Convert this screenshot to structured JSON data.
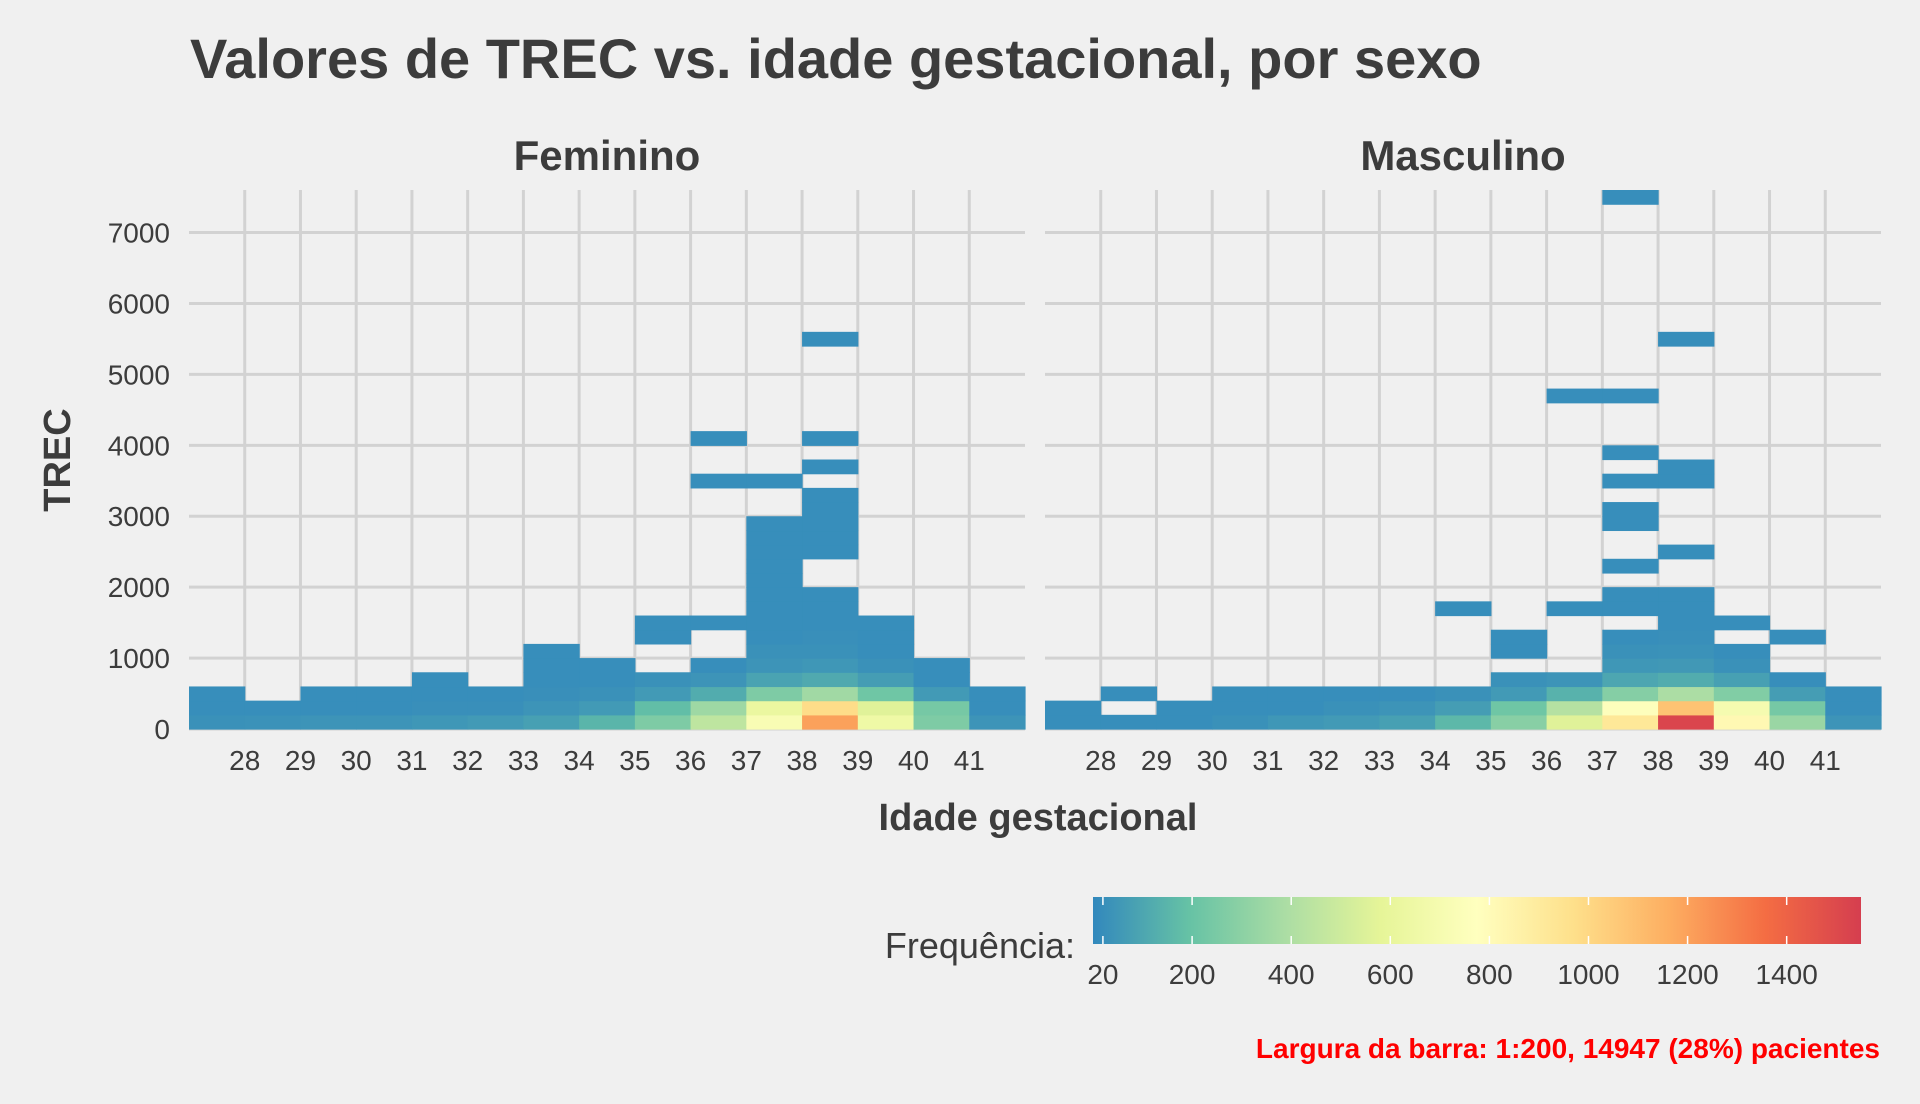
{
  "chart_data": {
    "type": "heatmap",
    "title": "Valores de TREC vs. idade gestacional, por sexo",
    "xlabel": "Idade gestacional",
    "ylabel": "TREC",
    "x_ticks": [
      28,
      29,
      30,
      31,
      32,
      33,
      34,
      35,
      36,
      37,
      38,
      39,
      40,
      41
    ],
    "y_ticks": [
      0,
      1000,
      2000,
      3000,
      4000,
      5000,
      6000,
      7000
    ],
    "xlim": [
      27,
      42
    ],
    "ylim": [
      0,
      7600
    ],
    "bin_height": 200,
    "grid": true,
    "legend": {
      "title": "Frequência:",
      "position": "bottom",
      "ticks": [
        20,
        200,
        400,
        600,
        800,
        1000,
        1200,
        1400
      ],
      "range": [
        0,
        1550
      ],
      "colors": [
        "#3288bd",
        "#66c2a5",
        "#abdda4",
        "#e6f598",
        "#ffffbf",
        "#fee08b",
        "#fdae61",
        "#f46d43",
        "#d53e4f"
      ]
    },
    "caption": "Largura da barra: 1:200, 14947 (28%) pacientes",
    "caption_color": "#ff0000",
    "panels": [
      {
        "name": "Feminino",
        "tiles": [
          [
            27,
            0,
            30
          ],
          [
            27,
            200,
            20
          ],
          [
            27,
            400,
            20
          ],
          [
            28,
            0,
            35
          ],
          [
            28,
            200,
            20
          ],
          [
            29,
            0,
            40
          ],
          [
            29,
            200,
            20
          ],
          [
            29,
            400,
            20
          ],
          [
            30,
            0,
            40
          ],
          [
            30,
            200,
            20
          ],
          [
            30,
            400,
            20
          ],
          [
            31,
            0,
            50
          ],
          [
            31,
            200,
            25
          ],
          [
            31,
            400,
            20
          ],
          [
            31,
            600,
            20
          ],
          [
            32,
            0,
            60
          ],
          [
            32,
            200,
            25
          ],
          [
            32,
            400,
            20
          ],
          [
            33,
            0,
            80
          ],
          [
            33,
            200,
            40
          ],
          [
            33,
            400,
            25
          ],
          [
            33,
            600,
            20
          ],
          [
            33,
            800,
            20
          ],
          [
            33,
            1000,
            20
          ],
          [
            34,
            0,
            150
          ],
          [
            34,
            200,
            60
          ],
          [
            34,
            400,
            30
          ],
          [
            34,
            600,
            20
          ],
          [
            34,
            800,
            20
          ],
          [
            35,
            0,
            260
          ],
          [
            35,
            200,
            180
          ],
          [
            35,
            400,
            60
          ],
          [
            35,
            600,
            30
          ],
          [
            35,
            1200,
            20
          ],
          [
            35,
            1400,
            20
          ],
          [
            36,
            0,
            450
          ],
          [
            36,
            200,
            350
          ],
          [
            36,
            400,
            120
          ],
          [
            36,
            600,
            40
          ],
          [
            36,
            800,
            20
          ],
          [
            36,
            1400,
            20
          ],
          [
            36,
            3400,
            20
          ],
          [
            36,
            4000,
            20
          ],
          [
            37,
            0,
            720
          ],
          [
            37,
            200,
            620
          ],
          [
            37,
            400,
            260
          ],
          [
            37,
            600,
            90
          ],
          [
            37,
            800,
            40
          ],
          [
            37,
            1000,
            30
          ],
          [
            37,
            1200,
            20
          ],
          [
            37,
            1400,
            20
          ],
          [
            37,
            1600,
            20
          ],
          [
            37,
            1800,
            20
          ],
          [
            37,
            2000,
            20
          ],
          [
            37,
            2200,
            20
          ],
          [
            37,
            2400,
            20
          ],
          [
            37,
            2600,
            20
          ],
          [
            37,
            2800,
            20
          ],
          [
            37,
            3400,
            20
          ],
          [
            38,
            0,
            1200
          ],
          [
            38,
            200,
            980
          ],
          [
            38,
            400,
            360
          ],
          [
            38,
            600,
            110
          ],
          [
            38,
            800,
            50
          ],
          [
            38,
            1000,
            30
          ],
          [
            38,
            1200,
            25
          ],
          [
            38,
            1400,
            20
          ],
          [
            38,
            1600,
            20
          ],
          [
            38,
            1800,
            20
          ],
          [
            38,
            2400,
            20
          ],
          [
            38,
            2600,
            20
          ],
          [
            38,
            2800,
            20
          ],
          [
            38,
            3000,
            20
          ],
          [
            38,
            3200,
            20
          ],
          [
            38,
            3600,
            20
          ],
          [
            38,
            4000,
            20
          ],
          [
            38,
            5400,
            20
          ],
          [
            39,
            0,
            650
          ],
          [
            39,
            200,
            560
          ],
          [
            39,
            400,
            220
          ],
          [
            39,
            600,
            70
          ],
          [
            39,
            800,
            30
          ],
          [
            39,
            1000,
            20
          ],
          [
            39,
            1200,
            20
          ],
          [
            39,
            1400,
            20
          ],
          [
            40,
            0,
            260
          ],
          [
            40,
            200,
            240
          ],
          [
            40,
            400,
            60
          ],
          [
            40,
            600,
            20
          ],
          [
            40,
            800,
            20
          ],
          [
            41,
            0,
            40
          ],
          [
            41,
            200,
            20
          ],
          [
            41,
            400,
            20
          ]
        ]
      },
      {
        "name": "Masculino",
        "tiles": [
          [
            27,
            0,
            20
          ],
          [
            27,
            200,
            20
          ],
          [
            28,
            0,
            20
          ],
          [
            28,
            400,
            20
          ],
          [
            29,
            0,
            20
          ],
          [
            29,
            200,
            20
          ],
          [
            30,
            0,
            30
          ],
          [
            30,
            200,
            20
          ],
          [
            30,
            400,
            20
          ],
          [
            31,
            0,
            50
          ],
          [
            31,
            200,
            20
          ],
          [
            31,
            400,
            20
          ],
          [
            32,
            0,
            60
          ],
          [
            32,
            200,
            30
          ],
          [
            32,
            400,
            20
          ],
          [
            33,
            0,
            80
          ],
          [
            33,
            200,
            40
          ],
          [
            33,
            400,
            20
          ],
          [
            34,
            0,
            160
          ],
          [
            34,
            200,
            70
          ],
          [
            34,
            400,
            30
          ],
          [
            34,
            1600,
            20
          ],
          [
            35,
            0,
            290
          ],
          [
            35,
            200,
            220
          ],
          [
            35,
            400,
            60
          ],
          [
            35,
            600,
            30
          ],
          [
            35,
            1000,
            20
          ],
          [
            35,
            1200,
            20
          ],
          [
            36,
            0,
            560
          ],
          [
            36,
            200,
            420
          ],
          [
            36,
            400,
            140
          ],
          [
            36,
            600,
            40
          ],
          [
            36,
            1600,
            20
          ],
          [
            36,
            4600,
            20
          ],
          [
            37,
            0,
            920
          ],
          [
            37,
            200,
            760
          ],
          [
            37,
            400,
            280
          ],
          [
            37,
            600,
            100
          ],
          [
            37,
            800,
            50
          ],
          [
            37,
            1000,
            30
          ],
          [
            37,
            1200,
            20
          ],
          [
            37,
            1600,
            20
          ],
          [
            37,
            1800,
            20
          ],
          [
            37,
            2200,
            20
          ],
          [
            37,
            2800,
            20
          ],
          [
            37,
            3000,
            20
          ],
          [
            37,
            3400,
            20
          ],
          [
            37,
            3800,
            20
          ],
          [
            37,
            4600,
            20
          ],
          [
            37,
            7400,
            20
          ],
          [
            38,
            0,
            1520
          ],
          [
            38,
            200,
            1080
          ],
          [
            38,
            400,
            390
          ],
          [
            38,
            600,
            120
          ],
          [
            38,
            800,
            55
          ],
          [
            38,
            1000,
            35
          ],
          [
            38,
            1200,
            25
          ],
          [
            38,
            1400,
            20
          ],
          [
            38,
            1600,
            20
          ],
          [
            38,
            1800,
            20
          ],
          [
            38,
            2400,
            20
          ],
          [
            38,
            3400,
            20
          ],
          [
            38,
            3600,
            20
          ],
          [
            38,
            5400,
            20
          ],
          [
            39,
            0,
            820
          ],
          [
            39,
            200,
            700
          ],
          [
            39,
            400,
            270
          ],
          [
            39,
            600,
            80
          ],
          [
            39,
            800,
            30
          ],
          [
            39,
            1000,
            20
          ],
          [
            39,
            1400,
            20
          ],
          [
            40,
            0,
            340
          ],
          [
            40,
            200,
            240
          ],
          [
            40,
            400,
            70
          ],
          [
            40,
            600,
            20
          ],
          [
            40,
            1200,
            20
          ],
          [
            41,
            0,
            40
          ],
          [
            41,
            200,
            20
          ],
          [
            41,
            400,
            20
          ]
        ]
      }
    ]
  }
}
